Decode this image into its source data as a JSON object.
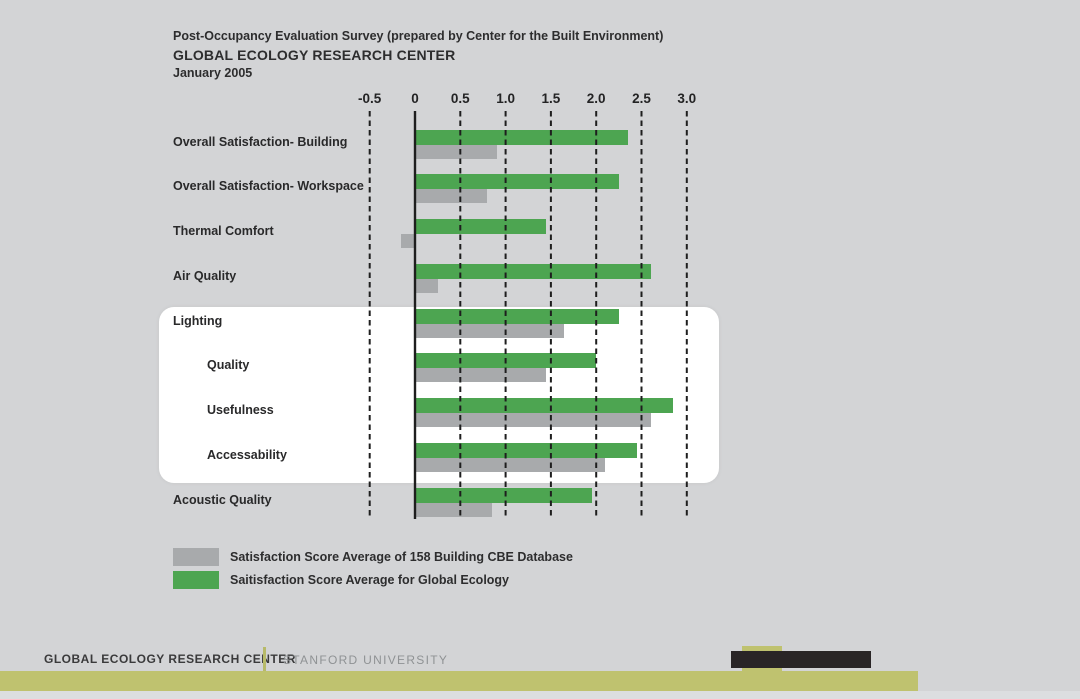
{
  "chart_data": {
    "type": "bar",
    "orientation": "horizontal",
    "title": "Post-Occupancy Evaluation Survey (prepared by Center for the Built Environment)",
    "subtitle": "GLOBAL ECOLOGY RESEARCH CENTER",
    "date": "January 2005",
    "categories": [
      "Overall Satisfaction- Building",
      "Overall Satisfaction- Workspace",
      "Thermal Comfort",
      "Air Quality",
      "Lighting",
      "Quality",
      "Usefulness",
      "Accessability",
      "Acoustic Quality"
    ],
    "indented_categories": [
      false,
      false,
      false,
      false,
      false,
      true,
      true,
      true,
      false
    ],
    "highlighted_categories": [
      "Lighting",
      "Quality",
      "Usefulness",
      "Accessability"
    ],
    "series": [
      {
        "name": "Saitisfaction Score Average for Global Ecology",
        "color": "#4da551",
        "values": [
          2.35,
          2.25,
          1.45,
          2.6,
          2.25,
          2.0,
          2.85,
          2.45,
          1.95
        ]
      },
      {
        "name": "Satisfaction Score Average of 158 Building CBE Database",
        "color": "#a8aaac",
        "values": [
          0.9,
          0.8,
          -0.15,
          0.25,
          1.65,
          1.45,
          2.6,
          2.1,
          0.85
        ]
      }
    ],
    "x_ticks": [
      -0.5,
      0,
      0.5,
      1.0,
      1.5,
      2.0,
      2.5,
      3.0
    ],
    "x_tick_labels": [
      "-0.5",
      "0",
      "0.5",
      "1.0",
      "1.5",
      "2.0",
      "2.5",
      "3.0"
    ],
    "xlim": [
      -0.5,
      3.0
    ],
    "gridlines": "vertical-dashed",
    "legend_position": "bottom-left"
  },
  "legend": [
    {
      "label": "Satisfaction Score Average of 158 Building CBE Database",
      "swatch_color": "#a8aaac"
    },
    {
      "label": "Saitisfaction Score Average for Global Ecology",
      "swatch_color": "#4da551"
    }
  ],
  "footer": {
    "org": "GLOBAL ECOLOGY RESEARCH CENTER",
    "university": "STANFORD UNIVERSITY"
  },
  "colors": {
    "background": "#d3d4d6",
    "highlight_panel": "#ffffff",
    "green_bar": "#4da551",
    "gray_bar": "#a8aaac",
    "accent_olive": "#bfc26f",
    "dark_bar": "#292526",
    "grid_line": "#1e1e1e"
  }
}
